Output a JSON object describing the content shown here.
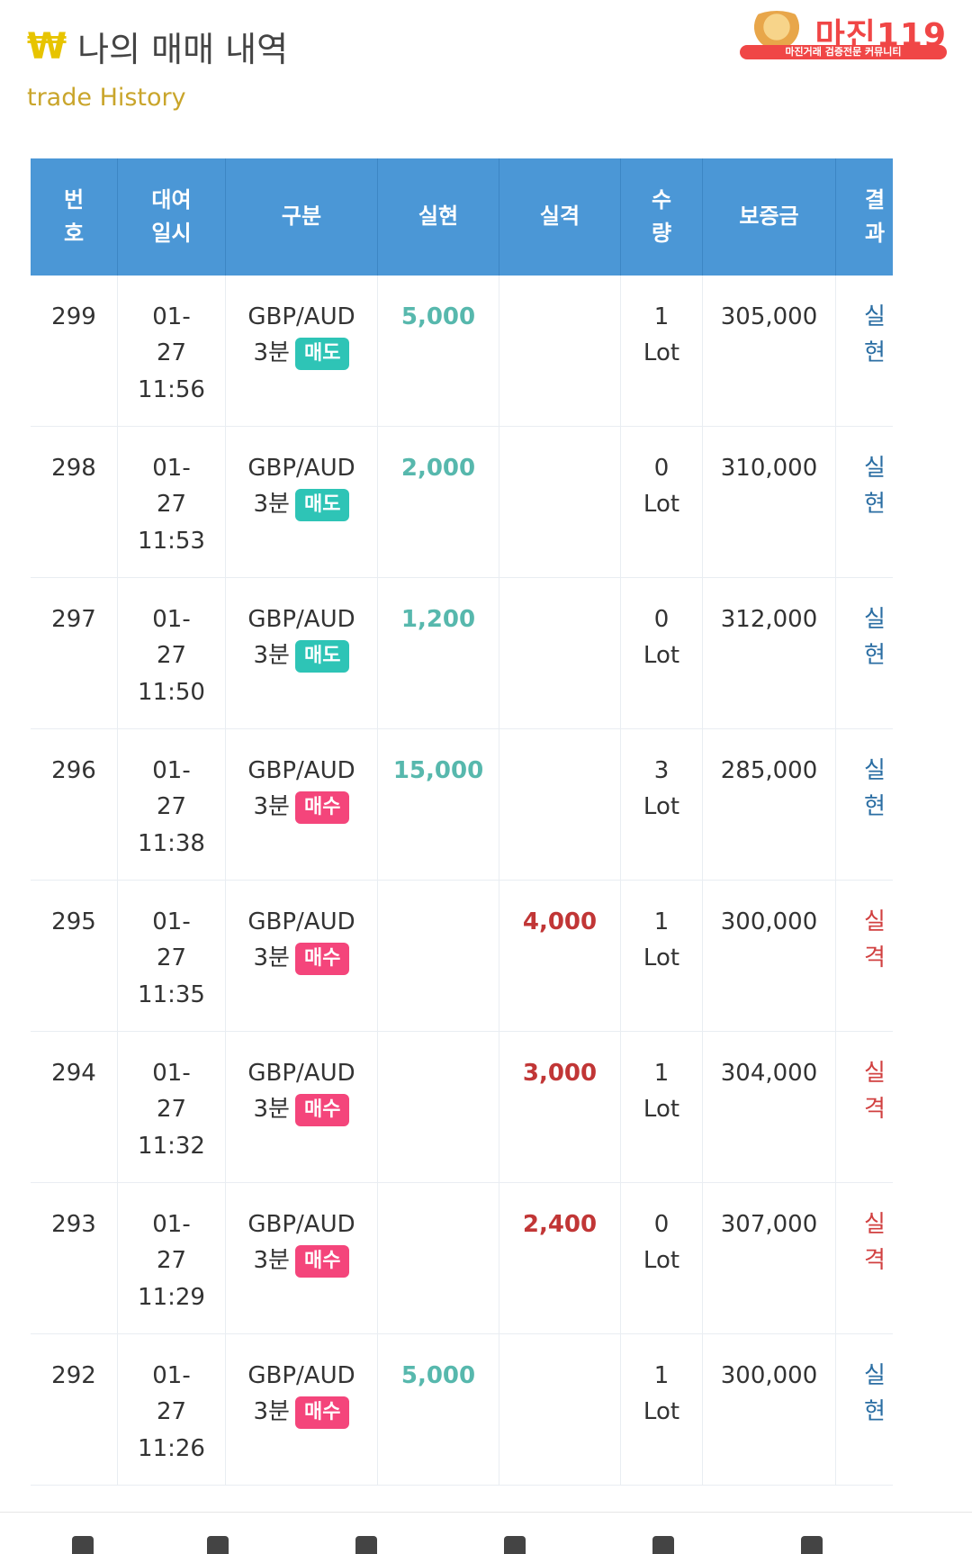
{
  "header": {
    "title": "나의 매매 내역",
    "subtitle": "trade History",
    "icon": "won-icon"
  },
  "logo": {
    "text": "마진119",
    "tagline": "마진거래 검증전문 커뮤니티"
  },
  "table": {
    "columns": [
      "번\n호",
      "대여\n일시",
      "구분",
      "실현",
      "실격",
      "수\n량",
      "보증금",
      "결\n과"
    ],
    "rows": [
      {
        "no": "299",
        "date": "01-",
        "day": "27",
        "time": "11:56",
        "pair": "GBP/AUD",
        "duration": "3분",
        "side": "매도",
        "real": "5,000",
        "lose": "",
        "qty": "1",
        "unit": "Lot",
        "margin": "305,000",
        "result": [
          "실",
          "현"
        ]
      },
      {
        "no": "298",
        "date": "01-",
        "day": "27",
        "time": "11:53",
        "pair": "GBP/AUD",
        "duration": "3분",
        "side": "매도",
        "real": "2,000",
        "lose": "",
        "qty": "0",
        "unit": "Lot",
        "margin": "310,000",
        "result": [
          "실",
          "현"
        ]
      },
      {
        "no": "297",
        "date": "01-",
        "day": "27",
        "time": "11:50",
        "pair": "GBP/AUD",
        "duration": "3분",
        "side": "매도",
        "real": "1,200",
        "lose": "",
        "qty": "0",
        "unit": "Lot",
        "margin": "312,000",
        "result": [
          "실",
          "현"
        ]
      },
      {
        "no": "296",
        "date": "01-",
        "day": "27",
        "time": "11:38",
        "pair": "GBP/AUD",
        "duration": "3분",
        "side": "매수",
        "real": "15,000",
        "lose": "",
        "qty": "3",
        "unit": "Lot",
        "margin": "285,000",
        "result": [
          "실",
          "현"
        ]
      },
      {
        "no": "295",
        "date": "01-",
        "day": "27",
        "time": "11:35",
        "pair": "GBP/AUD",
        "duration": "3분",
        "side": "매수",
        "real": "",
        "lose": "4,000",
        "qty": "1",
        "unit": "Lot",
        "margin": "300,000",
        "result": [
          "실",
          "격"
        ]
      },
      {
        "no": "294",
        "date": "01-",
        "day": "27",
        "time": "11:32",
        "pair": "GBP/AUD",
        "duration": "3분",
        "side": "매수",
        "real": "",
        "lose": "3,000",
        "qty": "1",
        "unit": "Lot",
        "margin": "304,000",
        "result": [
          "실",
          "격"
        ]
      },
      {
        "no": "293",
        "date": "01-",
        "day": "27",
        "time": "11:29",
        "pair": "GBP/AUD",
        "duration": "3분",
        "side": "매수",
        "real": "",
        "lose": "2,400",
        "qty": "0",
        "unit": "Lot",
        "margin": "307,000",
        "result": [
          "실",
          "격"
        ]
      },
      {
        "no": "292",
        "date": "01-",
        "day": "27",
        "time": "11:26",
        "pair": "GBP/AUD",
        "duration": "3분",
        "side": "매수",
        "real": "5,000",
        "lose": "",
        "qty": "1",
        "unit": "Lot",
        "margin": "300,000",
        "result": [
          "실",
          "현"
        ]
      }
    ]
  },
  "colors": {
    "header_bg": "#4b97d6",
    "profit": "#57b8ad",
    "loss": "#c13636",
    "sell_badge": "#2ec4b6",
    "buy_badge": "#f4457b",
    "result_win": "#2b6ea3",
    "result_loss": "#d14040"
  }
}
